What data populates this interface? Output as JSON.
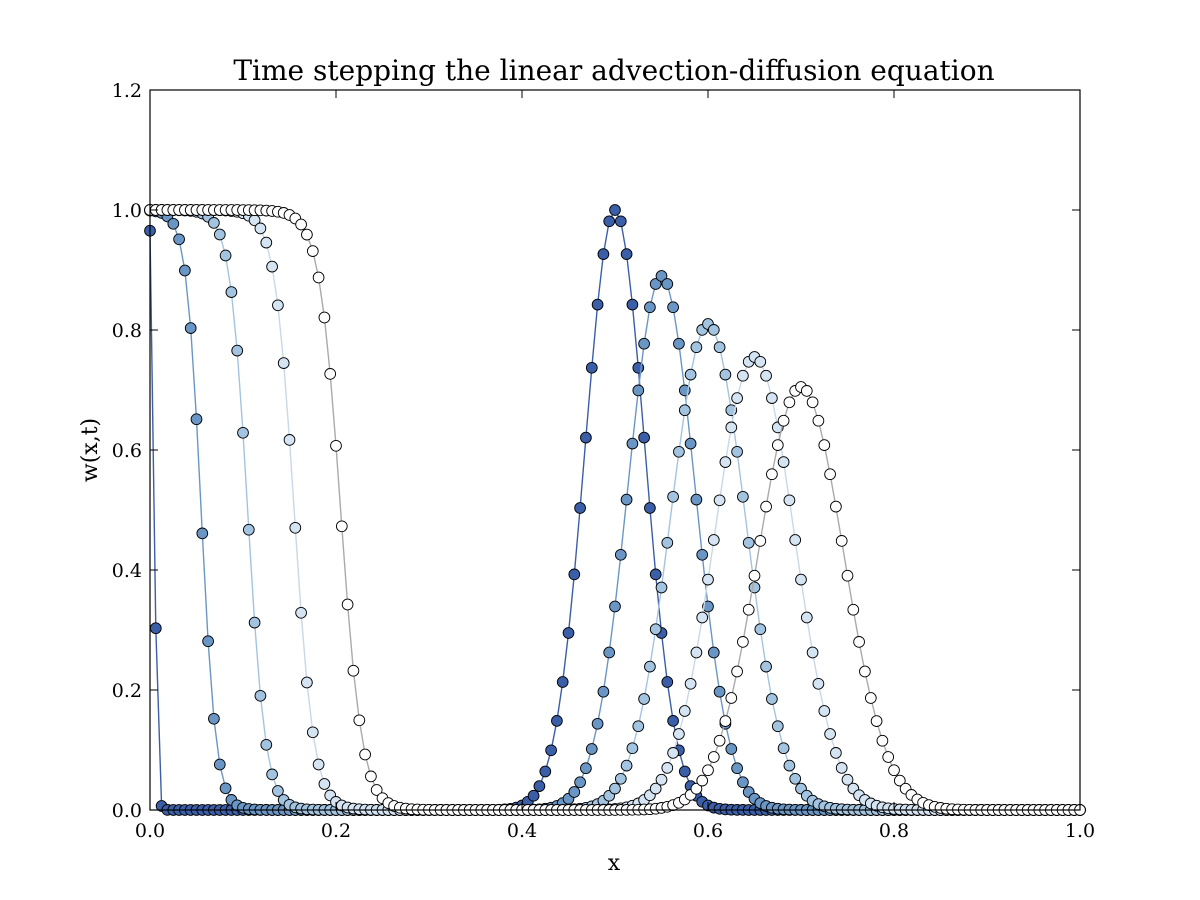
{
  "chart_data": {
    "type": "line",
    "title": "Time stepping the linear advection-diffusion equation",
    "xlabel": "x",
    "ylabel": "w(x,t)",
    "xlim": [
      0.0,
      1.0
    ],
    "ylim": [
      0.0,
      1.2
    ],
    "x_ticks": [
      "0.0",
      "0.2",
      "0.4",
      "0.6",
      "0.8",
      "1.0"
    ],
    "y_ticks": [
      "0.0",
      "0.2",
      "0.4",
      "0.6",
      "0.8",
      "1.0",
      "1.2"
    ],
    "x_tick_values": [
      0.0,
      0.2,
      0.4,
      0.6,
      0.8,
      1.0
    ],
    "y_tick_values": [
      0.0,
      0.2,
      0.4,
      0.6,
      0.8,
      1.0,
      1.2
    ],
    "grid": false,
    "legend": "none",
    "marker": "circle",
    "num_points": 161,
    "series": [
      {
        "color": "#3b5ea8",
        "line": "#3b5ea8",
        "step_center": 0.005,
        "step_width": 0.003,
        "pulse_center": 0.5,
        "pulse_peak": 1.0,
        "pulse_sigma": 0.032
      },
      {
        "color": "#6a96c6",
        "line": "#6a96c6",
        "step_center": 0.055,
        "step_width": 0.016,
        "pulse_center": 0.55,
        "pulse_peak": 0.89,
        "pulse_sigma": 0.036
      },
      {
        "color": "#a3c4e0",
        "line": "#a3c4e0",
        "step_center": 0.105,
        "step_width": 0.019,
        "pulse_center": 0.6,
        "pulse_peak": 0.81,
        "pulse_sigma": 0.04
      },
      {
        "color": "#d4e4f2",
        "line": "#c8d8e8",
        "step_center": 0.155,
        "step_width": 0.021,
        "pulse_center": 0.65,
        "pulse_peak": 0.755,
        "pulse_sigma": 0.043
      },
      {
        "color": "#ffffff",
        "line": "#aaaaaa",
        "step_center": 0.205,
        "step_width": 0.023,
        "pulse_center": 0.7,
        "pulse_peak": 0.705,
        "pulse_sigma": 0.046
      }
    ]
  }
}
